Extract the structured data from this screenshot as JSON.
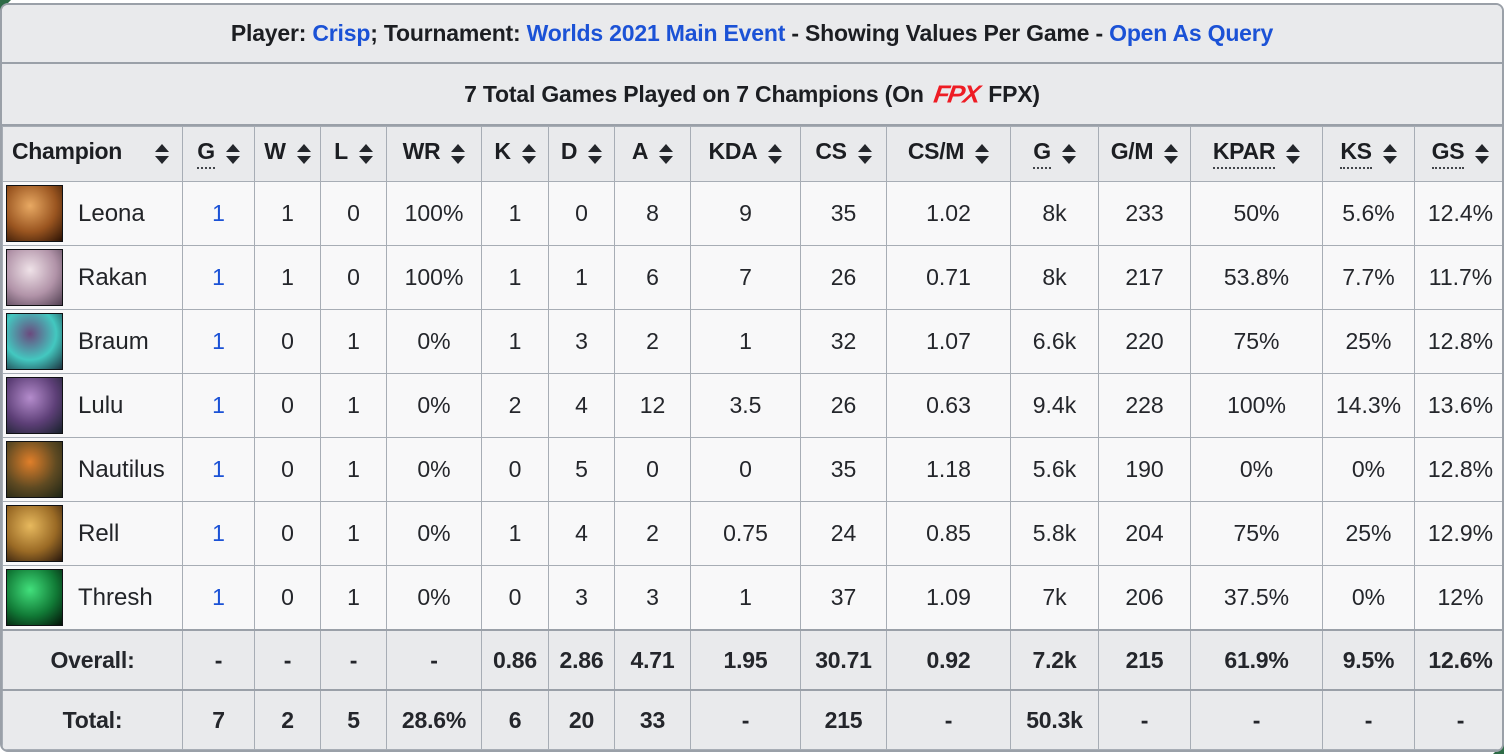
{
  "page": {
    "title": {
      "prefix": "Player: ",
      "player_link": "Crisp",
      "mid1": "; Tournament: ",
      "tournament_link": "Worlds 2021 Main Event",
      "mid2": " - Showing Values Per Game - ",
      "query_link": "Open As Query"
    },
    "subtitle": {
      "prefix": "7 Total Games Played on 7 Champions (On",
      "team_logo_icon": "fpx-logo",
      "team_logo_text": "FPX",
      "team_name": "FPX",
      "suffix": ")"
    }
  },
  "icons": {
    "sort": "sort-arrows",
    "team_logo": "fpx-logo"
  },
  "colors": {
    "link_blue": "#1b52d6",
    "logo_red": "#ee1c24",
    "bar_background": "#e9eaec",
    "row_background": "#f8f8f9",
    "border_gray": "#a7adb5"
  },
  "table": {
    "columns": [
      {
        "key": "champion",
        "label": "Champion",
        "sortable": true,
        "abbr": false
      },
      {
        "key": "games",
        "label": "G",
        "sortable": true,
        "abbr": true
      },
      {
        "key": "wins",
        "label": "W",
        "sortable": true,
        "abbr": false
      },
      {
        "key": "losses",
        "label": "L",
        "sortable": true,
        "abbr": false
      },
      {
        "key": "winrate",
        "label": "WR",
        "sortable": true,
        "abbr": false
      },
      {
        "key": "kills",
        "label": "K",
        "sortable": true,
        "abbr": false
      },
      {
        "key": "deaths",
        "label": "D",
        "sortable": true,
        "abbr": false
      },
      {
        "key": "assists",
        "label": "A",
        "sortable": true,
        "abbr": false
      },
      {
        "key": "kda",
        "label": "KDA",
        "sortable": true,
        "abbr": false
      },
      {
        "key": "cs",
        "label": "CS",
        "sortable": true,
        "abbr": false
      },
      {
        "key": "cspm",
        "label": "CS/M",
        "sortable": true,
        "abbr": false
      },
      {
        "key": "gold",
        "label": "G",
        "sortable": true,
        "abbr": true
      },
      {
        "key": "gpm",
        "label": "G/M",
        "sortable": true,
        "abbr": false
      },
      {
        "key": "kpar",
        "label": "KPAR",
        "sortable": true,
        "abbr": true
      },
      {
        "key": "ks",
        "label": "KS",
        "sortable": true,
        "abbr": true
      },
      {
        "key": "gs",
        "label": "GS",
        "sortable": true,
        "abbr": true
      }
    ],
    "rows": [
      {
        "champion": "Leona",
        "games_is_link": true,
        "icon_colors": [
          "#e8a963",
          "#9a5520",
          "#2b1204"
        ],
        "values": [
          "1",
          "1",
          "0",
          "100%",
          "1",
          "0",
          "8",
          "9",
          "35",
          "1.02",
          "8k",
          "233",
          "50%",
          "5.6%",
          "12.4%"
        ]
      },
      {
        "champion": "Rakan",
        "games_is_link": true,
        "icon_colors": [
          "#efe2e8",
          "#b193a8",
          "#514052"
        ],
        "values": [
          "1",
          "1",
          "0",
          "100%",
          "1",
          "1",
          "6",
          "7",
          "26",
          "0.71",
          "8k",
          "217",
          "53.8%",
          "7.7%",
          "11.7%"
        ]
      },
      {
        "champion": "Braum",
        "games_is_link": true,
        "icon_colors": [
          "#6b4a7e",
          "#43c8c0",
          "#1d3340"
        ],
        "values": [
          "1",
          "0",
          "1",
          "0%",
          "1",
          "3",
          "2",
          "1",
          "32",
          "1.07",
          "6.6k",
          "220",
          "75%",
          "25%",
          "12.8%"
        ]
      },
      {
        "champion": "Lulu",
        "games_is_link": true,
        "icon_colors": [
          "#b48ccc",
          "#5d3f77",
          "#17212b"
        ],
        "values": [
          "1",
          "0",
          "1",
          "0%",
          "2",
          "4",
          "12",
          "3.5",
          "26",
          "0.63",
          "9.4k",
          "228",
          "100%",
          "14.3%",
          "13.6%"
        ]
      },
      {
        "champion": "Nautilus",
        "games_is_link": true,
        "icon_colors": [
          "#e07f2a",
          "#5f4a22",
          "#1d2415"
        ],
        "values": [
          "1",
          "0",
          "1",
          "0%",
          "0",
          "5",
          "0",
          "0",
          "35",
          "1.18",
          "5.6k",
          "190",
          "0%",
          "0%",
          "12.8%"
        ]
      },
      {
        "champion": "Rell",
        "games_is_link": true,
        "icon_colors": [
          "#e7b95e",
          "#9a6a25",
          "#26160d"
        ],
        "values": [
          "1",
          "0",
          "1",
          "0%",
          "1",
          "4",
          "2",
          "0.75",
          "24",
          "0.85",
          "5.8k",
          "204",
          "75%",
          "25%",
          "12.9%"
        ]
      },
      {
        "champion": "Thresh",
        "games_is_link": true,
        "icon_colors": [
          "#42e07c",
          "#117a36",
          "#041108"
        ],
        "values": [
          "1",
          "0",
          "1",
          "0%",
          "0",
          "3",
          "3",
          "1",
          "37",
          "1.09",
          "7k",
          "206",
          "37.5%",
          "0%",
          "12%"
        ]
      }
    ],
    "overall": {
      "label": "Overall:",
      "values": [
        "-",
        "-",
        "-",
        "-",
        "0.86",
        "2.86",
        "4.71",
        "1.95",
        "30.71",
        "0.92",
        "7.2k",
        "215",
        "61.9%",
        "9.5%",
        "12.6%"
      ]
    },
    "total": {
      "label": "Total:",
      "values": [
        "7",
        "2",
        "5",
        "28.6%",
        "6",
        "20",
        "33",
        "-",
        "215",
        "-",
        "50.3k",
        "-",
        "-",
        "-",
        "-"
      ]
    }
  }
}
